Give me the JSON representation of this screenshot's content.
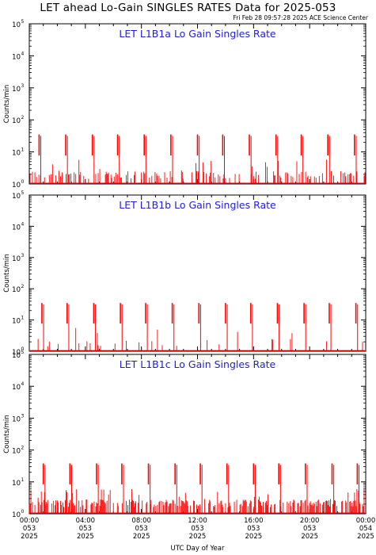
{
  "title": "LET ahead Lo-Gain SINGLES RATES Data for 2025-053",
  "timestamp": "Fri Feb 28 09:57:28 2025 ACE Science Center",
  "colors": {
    "data": "#ff0000",
    "panel_title": "#1f1fd6",
    "axis": "#000000"
  },
  "chart_data": [
    {
      "type": "line",
      "title": "LET L1B1a Lo Gain Singles Rate",
      "ylabel": "Counts/min",
      "yscale": "log",
      "ylim": [
        1,
        100000
      ],
      "ytick_labels": [
        "10^0",
        "10^1",
        "10^2",
        "10^3",
        "10^4",
        "10^5"
      ],
      "xlim": [
        0,
        24
      ],
      "spike_hours": [
        0.7,
        2.6,
        4.5,
        6.3,
        8.2,
        10.1,
        12.0,
        13.8,
        15.7,
        17.6,
        19.4,
        21.3,
        23.2
      ],
      "spike_value": 35,
      "background_level": 1.8,
      "background_density": 0.35
    },
    {
      "type": "line",
      "title": "LET L1B1b Lo Gain Singles Rate",
      "ylabel": "Counts/min",
      "yscale": "log",
      "ylim": [
        1,
        100000
      ],
      "ytick_labels": [
        "10^0",
        "10^1",
        "10^2",
        "10^3",
        "10^4",
        "10^5"
      ],
      "xlim": [
        0,
        24
      ],
      "spike_hours": [
        0.9,
        2.7,
        4.6,
        6.5,
        8.3,
        10.2,
        12.1,
        14.0,
        15.8,
        17.7,
        19.6,
        21.4,
        23.3
      ],
      "spike_value": 35,
      "background_level": 1.8,
      "background_density": 0.05
    },
    {
      "type": "line",
      "title": "LET L1B1c Lo Gain Singles Rate",
      "ylabel": "Counts/min",
      "yscale": "log",
      "ylim": [
        1,
        100000
      ],
      "ytick_labels": [
        "10^0",
        "10^1",
        "10^2",
        "10^3",
        "10^4",
        "10^5"
      ],
      "xlim": [
        0,
        24
      ],
      "spike_hours": [
        1.0,
        2.9,
        4.8,
        6.6,
        8.5,
        10.4,
        12.2,
        14.1,
        16.0,
        17.8,
        19.7,
        21.6,
        23.4
      ],
      "spike_value": 38,
      "background_level": 2.0,
      "background_density": 0.55
    }
  ],
  "x_axis": {
    "label": "UTC Day of Year",
    "ticks": [
      {
        "hour": 0,
        "time": "00:00",
        "doy": "053",
        "year": "2025"
      },
      {
        "hour": 4,
        "time": "04:00",
        "doy": "053",
        "year": "2025"
      },
      {
        "hour": 8,
        "time": "08:00",
        "doy": "053",
        "year": "2025"
      },
      {
        "hour": 12,
        "time": "12:00",
        "doy": "053",
        "year": "2025"
      },
      {
        "hour": 16,
        "time": "16:00",
        "doy": "053",
        "year": "2025"
      },
      {
        "hour": 20,
        "time": "20:00",
        "doy": "053",
        "year": "2025"
      },
      {
        "hour": 24,
        "time": "00:00",
        "doy": "054",
        "year": "2025"
      }
    ]
  }
}
